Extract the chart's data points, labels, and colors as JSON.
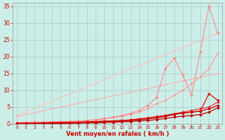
{
  "bg_color": "#cceee8",
  "grid_color": "#aacccc",
  "xlabel": "Vent moyen/en rafales ( km/h )",
  "xlabel_color": "#cc0000",
  "tick_color": "#cc0000",
  "xlim": [
    -0.5,
    23.5
  ],
  "ylim": [
    0,
    36
  ],
  "yticks": [
    0,
    5,
    10,
    15,
    20,
    25,
    30,
    35
  ],
  "xticks": [
    0,
    1,
    2,
    3,
    4,
    5,
    6,
    7,
    8,
    9,
    10,
    11,
    12,
    13,
    14,
    15,
    16,
    17,
    18,
    19,
    20,
    21,
    22,
    23
  ],
  "lines": [
    {
      "x": [
        0,
        23
      ],
      "y": [
        2.5,
        27.0
      ],
      "color": "#ffbbbb",
      "lw": 0.8,
      "marker": "D",
      "ms": 1.5
    },
    {
      "x": [
        0,
        23
      ],
      "y": [
        2.2,
        15.0
      ],
      "color": "#ffaaaa",
      "lw": 0.8,
      "marker": "D",
      "ms": 1.5
    },
    {
      "x": [
        0,
        1,
        2,
        3,
        4,
        5,
        6,
        7,
        8,
        9,
        10,
        11,
        12,
        13,
        14,
        15,
        16,
        17,
        18,
        19,
        20,
        21,
        22,
        23
      ],
      "y": [
        0.5,
        0.5,
        0.6,
        0.6,
        0.7,
        0.7,
        0.8,
        0.9,
        1.0,
        1.1,
        1.5,
        1.8,
        2.2,
        2.8,
        3.5,
        4.5,
        6.0,
        7.0,
        8.5,
        10.0,
        12.0,
        14.0,
        16.5,
        21.0
      ],
      "color": "#ff9999",
      "lw": 0.8,
      "marker": "D",
      "ms": 1.5
    },
    {
      "x": [
        0,
        1,
        2,
        3,
        4,
        5,
        6,
        7,
        8,
        9,
        10,
        11,
        12,
        13,
        14,
        15,
        16,
        17,
        18,
        19,
        20,
        21,
        22,
        23
      ],
      "y": [
        0.3,
        0.3,
        0.4,
        0.4,
        0.5,
        0.6,
        0.7,
        0.8,
        1.0,
        1.2,
        1.6,
        2.0,
        2.5,
        3.2,
        4.0,
        5.5,
        8.0,
        16.5,
        19.5,
        14.5,
        8.5,
        21.5,
        35.0,
        27.0
      ],
      "color": "#ff8888",
      "lw": 0.8,
      "marker": "D",
      "ms": 2.0
    },
    {
      "x": [
        0,
        1,
        2,
        3,
        4,
        5,
        6,
        7,
        8,
        9,
        10,
        11,
        12,
        13,
        14,
        15,
        16,
        17,
        18,
        19,
        20,
        21,
        22,
        23
      ],
      "y": [
        0.2,
        0.2,
        0.3,
        0.3,
        0.4,
        0.4,
        0.5,
        0.5,
        0.6,
        0.7,
        0.8,
        0.9,
        1.0,
        1.2,
        1.5,
        1.8,
        2.2,
        2.5,
        3.0,
        3.5,
        4.0,
        4.5,
        5.0,
        6.5
      ],
      "color": "#ee3333",
      "lw": 0.9,
      "marker": "D",
      "ms": 2.0
    },
    {
      "x": [
        0,
        1,
        2,
        3,
        4,
        5,
        6,
        7,
        8,
        9,
        10,
        11,
        12,
        13,
        14,
        15,
        16,
        17,
        18,
        19,
        20,
        21,
        22,
        23
      ],
      "y": [
        0.1,
        0.2,
        0.2,
        0.3,
        0.3,
        0.4,
        0.4,
        0.5,
        0.6,
        0.7,
        0.8,
        0.9,
        1.0,
        1.2,
        1.4,
        1.7,
        2.0,
        2.5,
        3.0,
        3.3,
        3.5,
        3.8,
        9.0,
        7.0
      ],
      "color": "#dd1111",
      "lw": 0.9,
      "marker": "D",
      "ms": 2.0
    },
    {
      "x": [
        0,
        1,
        2,
        3,
        4,
        5,
        6,
        7,
        8,
        9,
        10,
        11,
        12,
        13,
        14,
        15,
        16,
        17,
        18,
        19,
        20,
        21,
        22,
        23
      ],
      "y": [
        0.1,
        0.1,
        0.1,
        0.2,
        0.2,
        0.3,
        0.3,
        0.4,
        0.4,
        0.5,
        0.6,
        0.7,
        0.8,
        1.0,
        1.2,
        1.5,
        1.8,
        2.2,
        2.8,
        3.2,
        3.5,
        3.8,
        4.5,
        5.5
      ],
      "color": "#cc0000",
      "lw": 0.9,
      "marker": "D",
      "ms": 2.0
    },
    {
      "x": [
        0,
        1,
        2,
        3,
        4,
        5,
        6,
        7,
        8,
        9,
        10,
        11,
        12,
        13,
        14,
        15,
        16,
        17,
        18,
        19,
        20,
        21,
        22,
        23
      ],
      "y": [
        0.05,
        0.05,
        0.05,
        0.1,
        0.1,
        0.1,
        0.2,
        0.2,
        0.3,
        0.3,
        0.4,
        0.5,
        0.6,
        0.7,
        0.9,
        1.0,
        1.3,
        1.6,
        2.0,
        2.3,
        2.5,
        2.8,
        3.5,
        4.8
      ],
      "color": "#bb0000",
      "lw": 0.9,
      "marker": "D",
      "ms": 2.0
    }
  ]
}
